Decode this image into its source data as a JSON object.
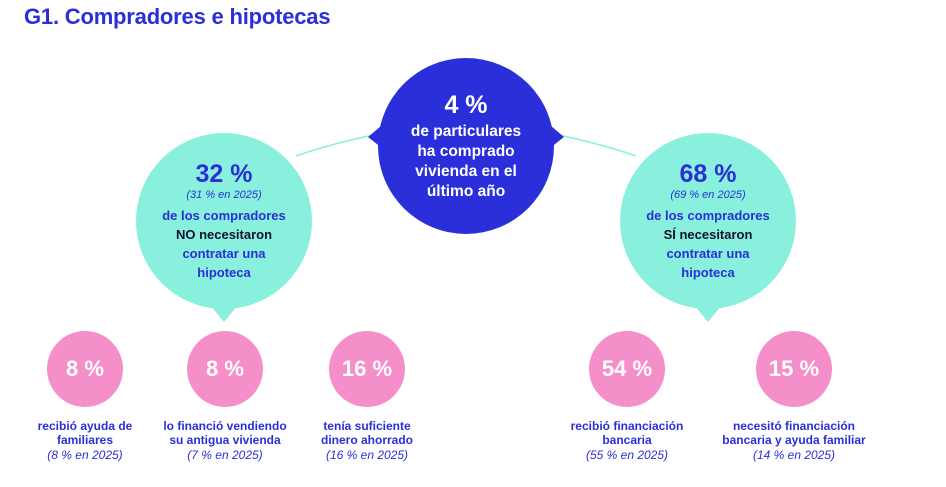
{
  "title": "G1. Compradores e hipotecas",
  "colors": {
    "blue": "#2a2fd9",
    "turquoise": "#88f0dc",
    "pink": "#f48fca",
    "dark_text": "#111133"
  },
  "center": {
    "value": "4 %",
    "lines": [
      "de particulares",
      "ha comprado",
      "vivienda en el",
      "último año"
    ]
  },
  "left": {
    "value": "32 %",
    "prev": "(31 % en 2025)",
    "line1": "de los compradores",
    "line2": "NO necesitaron",
    "line3a": "contratar una",
    "line3b": "hipoteca"
  },
  "right": {
    "value": "68 %",
    "prev": "(69 % en 2025)",
    "line1": "de los compradores",
    "line2": "SÍ necesitaron",
    "line3a": "contratar una",
    "line3b": "hipoteca"
  },
  "stats": [
    {
      "value": "8 %",
      "label1": "recibió ayuda de",
      "label2": "familiares",
      "prev": "(8 % en 2025)"
    },
    {
      "value": "8 %",
      "label1": "lo financió vendiendo",
      "label2": "su antigua vivienda",
      "prev": "(7 % en 2025)"
    },
    {
      "value": "16 %",
      "label1": "tenía suficiente",
      "label2": "dinero ahorrado",
      "prev": "(16 % en 2025)"
    },
    {
      "value": "54 %",
      "label1": "recibió financiación",
      "label2": "bancaria",
      "prev": "(55 % en 2025)"
    },
    {
      "value": "15 %",
      "label1": "necesitó financiación",
      "label2": "bancaria y ayuda familiar",
      "prev": "(14 % en 2025)"
    }
  ]
}
